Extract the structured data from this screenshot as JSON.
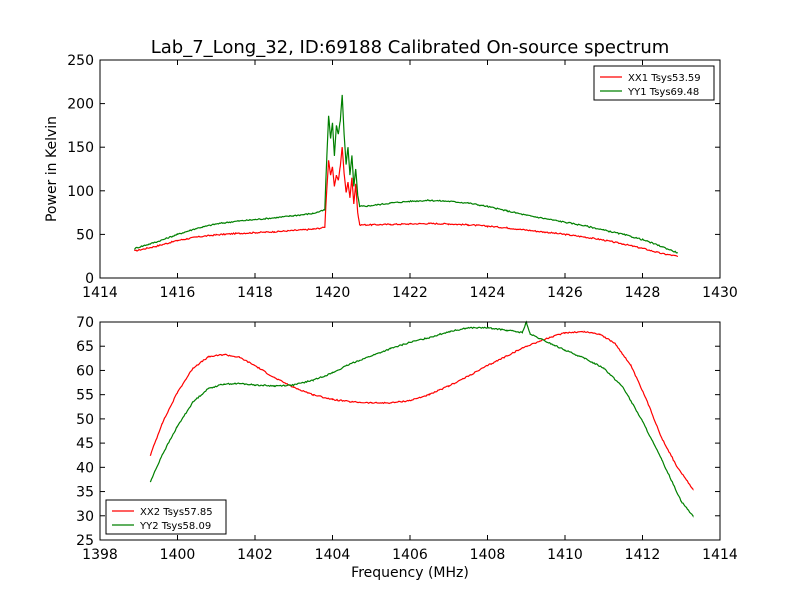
{
  "chart_data": [
    {
      "type": "line",
      "title": "Lab_7_Long_32, ID:69188 Calibrated On-source spectrum",
      "xlabel": "",
      "ylabel": "Power in Kelvin",
      "xlim": [
        1414,
        1430
      ],
      "ylim": [
        0,
        250
      ],
      "xticks": [
        "1414",
        "1416",
        "1418",
        "1420",
        "1422",
        "1424",
        "1426",
        "1428",
        "1430"
      ],
      "yticks": [
        "0",
        "50",
        "100",
        "150",
        "200",
        "250"
      ],
      "legend_position": "top-right",
      "grid": false,
      "series": [
        {
          "name": "XX1 Tsys53.59",
          "color": "#ff0000",
          "x": [
            1414.9,
            1415.5,
            1416.0,
            1416.5,
            1417.0,
            1417.5,
            1418.0,
            1418.5,
            1419.0,
            1419.5,
            1419.8,
            1419.85,
            1419.9,
            1419.95,
            1420.0,
            1420.05,
            1420.1,
            1420.15,
            1420.2,
            1420.25,
            1420.3,
            1420.35,
            1420.4,
            1420.45,
            1420.5,
            1420.55,
            1420.6,
            1420.65,
            1420.7,
            1421.0,
            1421.5,
            1422.0,
            1422.5,
            1423.0,
            1423.5,
            1424.0,
            1424.5,
            1425.0,
            1425.5,
            1426.0,
            1426.5,
            1427.0,
            1427.5,
            1428.0,
            1428.5,
            1428.9
          ],
          "values": [
            31,
            37,
            43,
            47,
            49.5,
            51,
            52,
            53,
            54.5,
            56,
            58,
            100,
            135,
            118,
            127,
            105,
            118,
            112,
            128,
            150,
            120,
            98,
            110,
            92,
            115,
            85,
            108,
            75,
            61,
            61,
            61.5,
            62,
            62.5,
            62,
            61,
            59.5,
            57.5,
            55,
            52.5,
            50,
            47,
            43.5,
            39,
            34,
            28,
            25
          ]
        },
        {
          "name": "YY1 Tsys69.48",
          "color": "#008000",
          "x": [
            1414.9,
            1415.5,
            1416.0,
            1416.5,
            1417.0,
            1417.5,
            1418.0,
            1418.5,
            1419.0,
            1419.5,
            1419.8,
            1419.85,
            1419.9,
            1419.95,
            1420.0,
            1420.05,
            1420.1,
            1420.15,
            1420.2,
            1420.25,
            1420.3,
            1420.35,
            1420.4,
            1420.45,
            1420.5,
            1420.55,
            1420.6,
            1420.65,
            1420.7,
            1421.0,
            1421.5,
            1422.0,
            1422.5,
            1423.0,
            1423.5,
            1424.0,
            1424.5,
            1425.0,
            1425.5,
            1426.0,
            1426.5,
            1427.0,
            1427.5,
            1428.0,
            1428.5,
            1428.9
          ],
          "values": [
            34,
            42,
            50,
            57,
            62,
            65,
            67,
            69,
            71.5,
            74,
            78,
            135,
            186,
            160,
            178,
            140,
            175,
            165,
            180,
            210,
            165,
            130,
            150,
            118,
            140,
            105,
            125,
            95,
            82,
            83,
            86,
            88,
            89,
            88,
            86,
            82,
            77,
            72,
            68,
            64,
            60,
            55,
            50,
            44,
            36,
            29
          ]
        }
      ]
    },
    {
      "type": "line",
      "title": "",
      "xlabel": "Frequency (MHz)",
      "ylabel": "",
      "xlim": [
        1398,
        1414
      ],
      "ylim": [
        25,
        70
      ],
      "xticks": [
        "1398",
        "1400",
        "1402",
        "1404",
        "1406",
        "1408",
        "1410",
        "1412",
        "1414"
      ],
      "yticks": [
        "25",
        "30",
        "35",
        "40",
        "45",
        "50",
        "55",
        "60",
        "65",
        "70"
      ],
      "legend_position": "lower-left",
      "grid": false,
      "series": [
        {
          "name": "XX2 Tsys57.85",
          "color": "#ff0000",
          "x": [
            1399.3,
            1399.6,
            1400.0,
            1400.4,
            1400.8,
            1401.2,
            1401.6,
            1402.0,
            1402.5,
            1403.0,
            1403.5,
            1404.0,
            1404.5,
            1405.0,
            1405.5,
            1406.0,
            1406.5,
            1407.0,
            1407.5,
            1408.0,
            1408.5,
            1409.0,
            1409.5,
            1410.0,
            1410.5,
            1410.9,
            1411.3,
            1411.7,
            1412.1,
            1412.5,
            1412.9,
            1413.3
          ],
          "values": [
            42.5,
            49,
            55.5,
            60.5,
            62.8,
            63.3,
            62.7,
            61,
            58.5,
            56.5,
            55,
            54,
            53.5,
            53.3,
            53.3,
            53.8,
            55,
            56.8,
            58.8,
            61,
            63,
            65,
            66.5,
            67.8,
            68,
            67.5,
            65.5,
            61,
            54,
            46,
            40,
            35.5
          ]
        },
        {
          "name": "YY2 Tsys58.09",
          "color": "#008000",
          "x": [
            1399.3,
            1399.6,
            1400.0,
            1400.4,
            1400.8,
            1401.2,
            1401.6,
            1402.0,
            1402.5,
            1403.0,
            1403.5,
            1404.0,
            1404.5,
            1405.0,
            1405.5,
            1406.0,
            1406.5,
            1407.0,
            1407.5,
            1408.0,
            1408.5,
            1408.9,
            1409.0,
            1409.1,
            1409.5,
            1410.0,
            1410.5,
            1411.0,
            1411.5,
            1412.0,
            1412.5,
            1413.0,
            1413.3
          ],
          "values": [
            37,
            42.5,
            48.5,
            53.5,
            56.3,
            57.2,
            57.3,
            57,
            56.8,
            57,
            58,
            59.5,
            61.5,
            63,
            64.5,
            65.8,
            66.8,
            68,
            68.8,
            68.8,
            68.3,
            67.8,
            70,
            67.5,
            66,
            64.2,
            62.5,
            60.5,
            56.5,
            49.5,
            41.5,
            33,
            30
          ]
        }
      ]
    }
  ]
}
